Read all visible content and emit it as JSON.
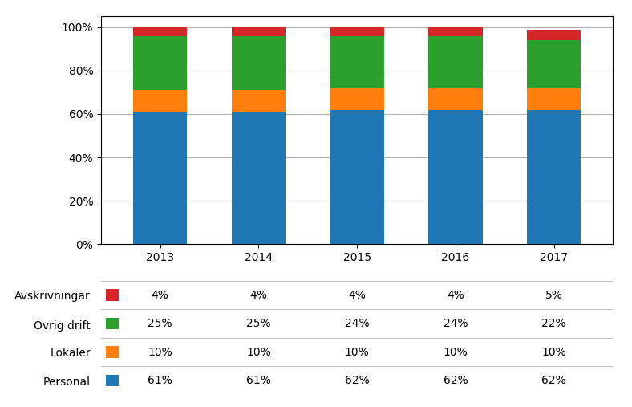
{
  "chart_data": {
    "type": "bar",
    "stacked": true,
    "categories": [
      "2013",
      "2014",
      "2015",
      "2016",
      "2017"
    ],
    "series": [
      {
        "name": "Personal",
        "values": [
          61,
          61,
          62,
          62,
          62
        ],
        "value_labels": [
          "61%",
          "61%",
          "62%",
          "62%",
          "62%"
        ]
      },
      {
        "name": "Lokaler",
        "values": [
          10,
          10,
          10,
          10,
          10
        ],
        "value_labels": [
          "10%",
          "10%",
          "10%",
          "10%",
          "10%"
        ]
      },
      {
        "name": "Övrig drift",
        "values": [
          25,
          25,
          24,
          24,
          22
        ],
        "value_labels": [
          "25%",
          "25%",
          "24%",
          "24%",
          "22%"
        ]
      },
      {
        "name": "Avskrivningar",
        "values": [
          4,
          4,
          4,
          4,
          5
        ],
        "value_labels": [
          "4%",
          "4%",
          "4%",
          "4%",
          "5%"
        ]
      }
    ],
    "ylim": [
      0,
      105
    ],
    "yticks": [
      {
        "value": 0,
        "label": "0%"
      },
      {
        "value": 20,
        "label": "20%"
      },
      {
        "value": 40,
        "label": "40%"
      },
      {
        "value": 60,
        "label": "60%"
      },
      {
        "value": 80,
        "label": "80%"
      },
      {
        "value": 100,
        "label": "100%"
      }
    ],
    "grid": true
  }
}
